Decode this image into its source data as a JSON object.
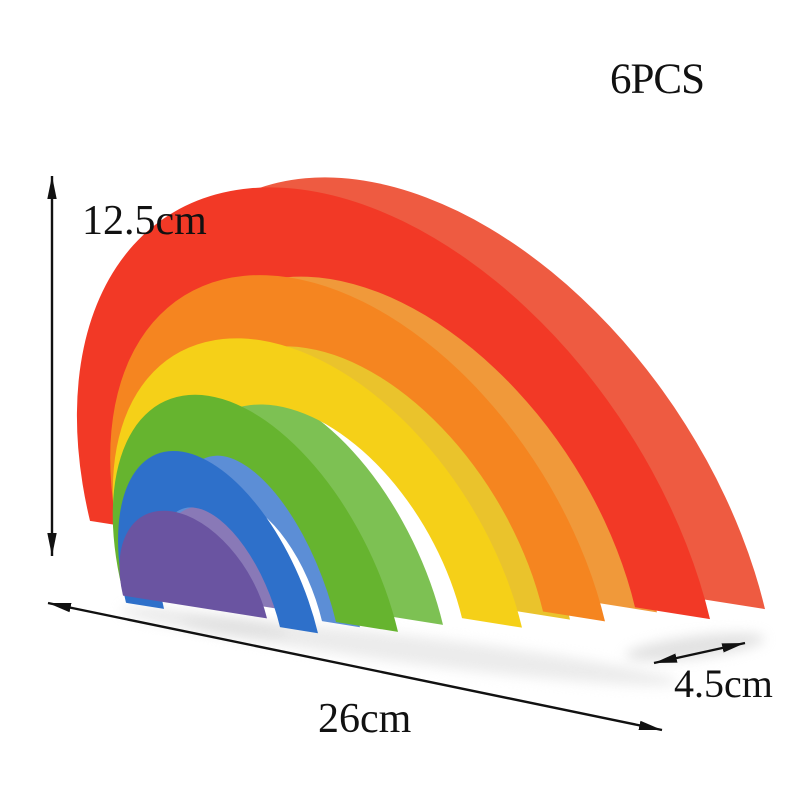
{
  "badge": {
    "pieces": "6PCS"
  },
  "dimensions": {
    "height": "12.5cm",
    "width": "26cm",
    "depth": "4.5cm"
  },
  "annotation": {
    "arrow_color": "#111111",
    "shadow_color": "#d9d9d9"
  },
  "rainbow": {
    "blocks": [
      {
        "name": "red",
        "front": "#f23926",
        "side": "#ee5b41"
      },
      {
        "name": "orange",
        "front": "#f58520",
        "side": "#f0993a"
      },
      {
        "name": "yellow",
        "front": "#f5d018",
        "side": "#eac32c"
      },
      {
        "name": "green",
        "front": "#66b42f",
        "side": "#7dc153"
      },
      {
        "name": "blue",
        "front": "#2e70ca",
        "side": "#5c8ed6"
      },
      {
        "name": "purple",
        "front": "#6a54a1",
        "side": "#8979b7"
      }
    ]
  }
}
